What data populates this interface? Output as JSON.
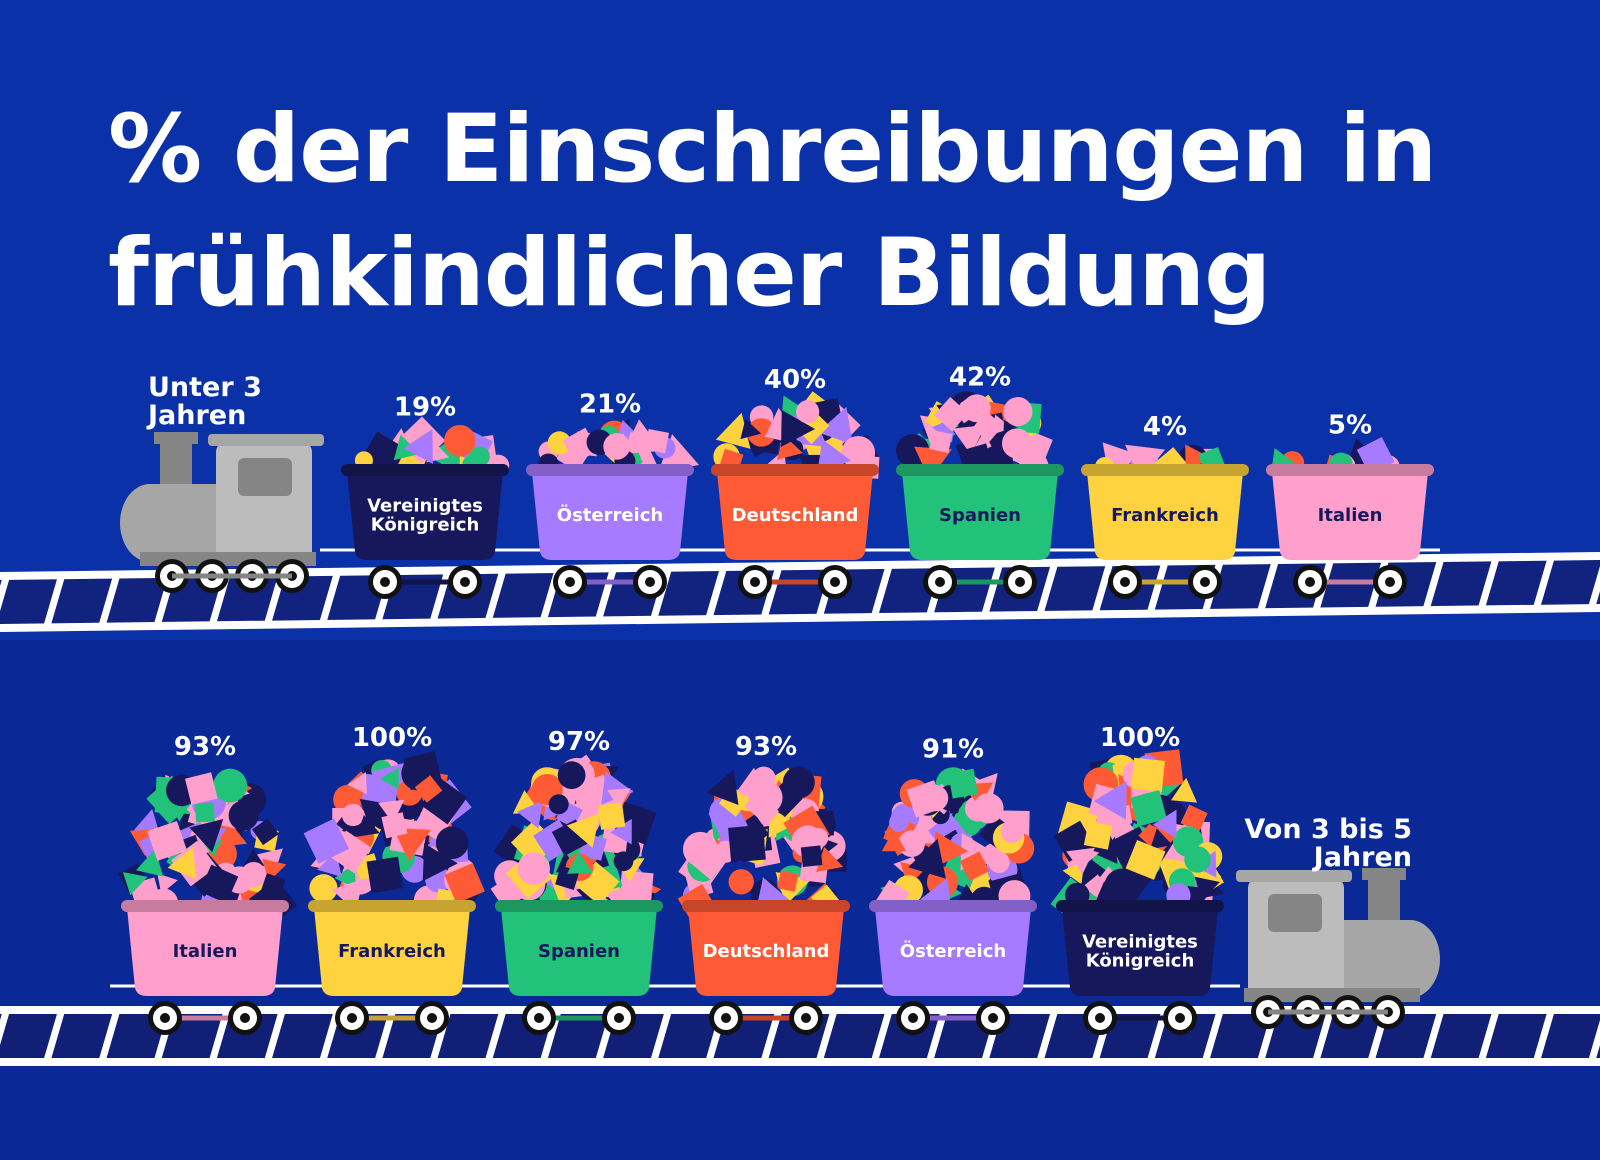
{
  "title": {
    "line1": "% der Einschreibungen in",
    "line2": "frühkindlicher Bildung"
  },
  "colors": {
    "background": "#0b31a8",
    "band": "#0a2896",
    "rail": "#ffffff",
    "locomotive": "#a6a6a6",
    "navy": "#17185c",
    "Vereinigtes Königreich": "#17185c",
    "Österreich": "#a77bff",
    "Deutschland": "#ff5a36",
    "Spanien": "#22c27a",
    "Frankreich": "#ffd23f",
    "Italien": "#ff9fcc"
  },
  "chart_data": [
    {
      "type": "bar",
      "unit": "%",
      "group_label_lines": [
        "Unter 3",
        "Jahren"
      ],
      "categories": [
        [
          "Vereinigtes",
          "Königreich"
        ],
        [
          "Österreich"
        ],
        [
          "Deutschland"
        ],
        [
          "Spanien"
        ],
        [
          "Frankreich"
        ],
        [
          "Italien"
        ]
      ],
      "values": [
        19,
        21,
        40,
        42,
        4,
        5
      ],
      "value_labels": [
        "19%",
        "21%",
        "40%",
        "42%",
        "4%",
        "5%"
      ],
      "ylim": [
        0,
        100
      ]
    },
    {
      "type": "bar",
      "unit": "%",
      "group_label_lines": [
        "Von 3 bis 5",
        "Jahren"
      ],
      "categories": [
        [
          "Italien"
        ],
        [
          "Frankreich"
        ],
        [
          "Spanien"
        ],
        [
          "Deutschland"
        ],
        [
          "Österreich"
        ],
        [
          "Vereinigtes",
          "Königreich"
        ]
      ],
      "values": [
        93,
        100,
        97,
        93,
        91,
        100
      ],
      "value_labels": [
        "93%",
        "100%",
        "97%",
        "93%",
        "91%",
        "100%"
      ],
      "ylim": [
        0,
        100
      ]
    }
  ]
}
